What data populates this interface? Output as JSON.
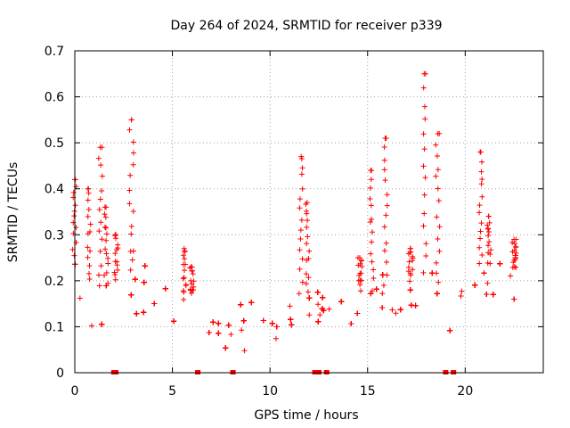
{
  "chart_data": {
    "type": "scatter",
    "title": "Day 264 of 2024, SRMTID for receiver p339",
    "xlabel": "GPS time / hours",
    "ylabel": "SRMTID / TECUs",
    "xlim": [
      0,
      24
    ],
    "ylim": [
      0,
      0.7
    ],
    "xticks": [
      0,
      5,
      10,
      15,
      20
    ],
    "xtick_labels": [
      "0",
      "5",
      "10",
      "15",
      "20"
    ],
    "yticks": [
      0,
      0.1,
      0.2,
      0.3,
      0.4,
      0.5,
      0.6,
      0.7
    ],
    "ytick_labels": [
      "0",
      "0.1",
      "0.2",
      "0.3",
      "0.4",
      "0.5",
      "0.6",
      "0.7"
    ],
    "grid": true,
    "marker": "+",
    "color": "#ff0000",
    "profile_note": "approximate envelope of dense per-satellite scatter; points generated around these levels",
    "profile": [
      {
        "x": 0.0,
        "base": 0.2,
        "spread": 0.06
      },
      {
        "x": 1.0,
        "base": 0.15,
        "spread": 0.05
      },
      {
        "x": 2.0,
        "base": 0.16,
        "spread": 0.05
      },
      {
        "x": 3.0,
        "base": 0.18,
        "spread": 0.06
      },
      {
        "x": 4.0,
        "base": 0.13,
        "spread": 0.04
      },
      {
        "x": 5.0,
        "base": 0.11,
        "spread": 0.04
      },
      {
        "x": 6.0,
        "base": 0.13,
        "spread": 0.04
      },
      {
        "x": 7.0,
        "base": 0.08,
        "spread": 0.03
      },
      {
        "x": 8.0,
        "base": 0.09,
        "spread": 0.03
      },
      {
        "x": 9.0,
        "base": 0.12,
        "spread": 0.04
      },
      {
        "x": 10.0,
        "base": 0.1,
        "spread": 0.04
      },
      {
        "x": 11.0,
        "base": 0.12,
        "spread": 0.04
      },
      {
        "x": 12.0,
        "base": 0.14,
        "spread": 0.05
      },
      {
        "x": 13.0,
        "base": 0.12,
        "spread": 0.04
      },
      {
        "x": 14.0,
        "base": 0.15,
        "spread": 0.05
      },
      {
        "x": 15.0,
        "base": 0.14,
        "spread": 0.05
      },
      {
        "x": 16.0,
        "base": 0.15,
        "spread": 0.05
      },
      {
        "x": 17.0,
        "base": 0.16,
        "spread": 0.05
      },
      {
        "x": 18.0,
        "base": 0.18,
        "spread": 0.07
      },
      {
        "x": 19.0,
        "base": 0.14,
        "spread": 0.05
      },
      {
        "x": 20.0,
        "base": 0.15,
        "spread": 0.05
      },
      {
        "x": 21.0,
        "base": 0.2,
        "spread": 0.06
      },
      {
        "x": 22.0,
        "base": 0.19,
        "spread": 0.06
      },
      {
        "x": 22.7,
        "base": 0.18,
        "spread": 0.05
      }
    ],
    "peaks": [
      {
        "x": 0.0,
        "y": 0.42
      },
      {
        "x": 0.7,
        "y": 0.4
      },
      {
        "x": 1.3,
        "y": 0.49
      },
      {
        "x": 1.6,
        "y": 0.36
      },
      {
        "x": 2.1,
        "y": 0.3
      },
      {
        "x": 2.9,
        "y": 0.55
      },
      {
        "x": 5.6,
        "y": 0.27
      },
      {
        "x": 6.0,
        "y": 0.23
      },
      {
        "x": 11.6,
        "y": 0.47
      },
      {
        "x": 11.9,
        "y": 0.37
      },
      {
        "x": 14.6,
        "y": 0.25
      },
      {
        "x": 15.2,
        "y": 0.44
      },
      {
        "x": 15.9,
        "y": 0.51
      },
      {
        "x": 17.2,
        "y": 0.27
      },
      {
        "x": 17.9,
        "y": 0.65
      },
      {
        "x": 18.6,
        "y": 0.52
      },
      {
        "x": 20.8,
        "y": 0.48
      },
      {
        "x": 21.2,
        "y": 0.34
      },
      {
        "x": 22.5,
        "y": 0.29
      }
    ],
    "zero_values_at_x": [
      2.0,
      2.1,
      6.3,
      8.1,
      12.3,
      12.5,
      12.9,
      19.0,
      19.4
    ]
  }
}
